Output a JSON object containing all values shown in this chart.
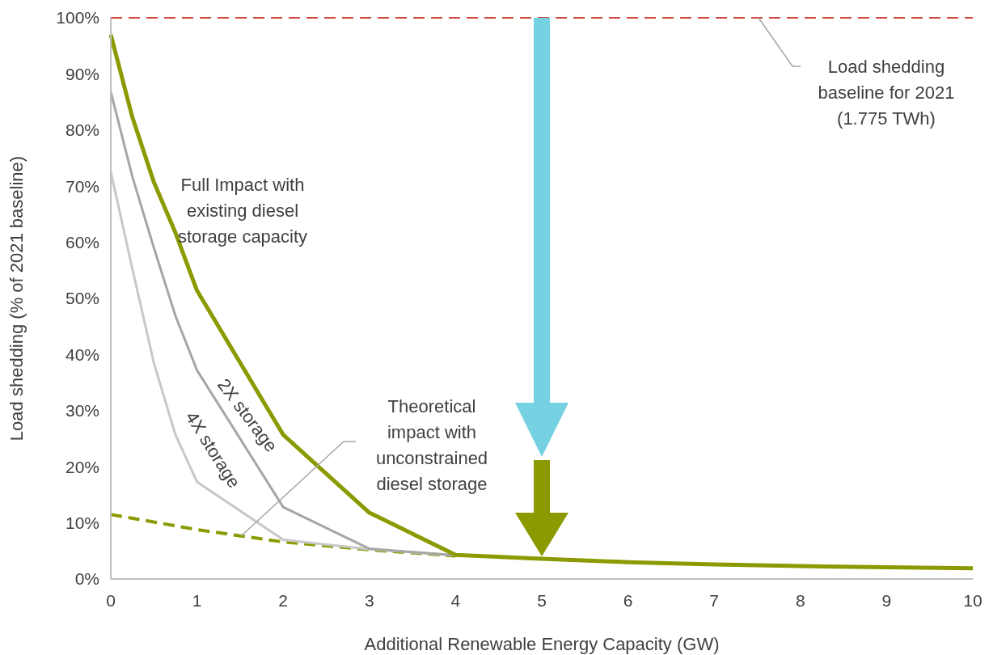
{
  "chart_data": {
    "type": "line",
    "xlabel": "Additional Renewable Energy Capacity (GW)",
    "ylabel": "Load shedding (% of 2021 baseline)",
    "xlim": [
      0,
      10
    ],
    "xticks": [
      0,
      1,
      2,
      3,
      4,
      5,
      6,
      7,
      8,
      9,
      10
    ],
    "ylim": [
      0,
      100
    ],
    "yticks": [
      {
        "value": 0,
        "label": "0%"
      },
      {
        "value": 10,
        "label": "10%"
      },
      {
        "value": 20,
        "label": "20%"
      },
      {
        "value": 30,
        "label": "30%"
      },
      {
        "value": 40,
        "label": "40%"
      },
      {
        "value": 50,
        "label": "50%"
      },
      {
        "value": 60,
        "label": "60%"
      },
      {
        "value": 70,
        "label": "70%"
      },
      {
        "value": 80,
        "label": "80%"
      },
      {
        "value": 90,
        "label": "90%"
      },
      {
        "value": 100,
        "label": "100%"
      }
    ],
    "grid": false,
    "legend": false,
    "marker": "none",
    "series": [
      {
        "name": "Full Impact with existing diesel storage capacity",
        "color": "#8a9a00",
        "x": [
          0,
          0.25,
          0.5,
          0.75,
          1,
          2,
          3,
          4,
          5,
          6,
          7,
          8,
          9,
          10
        ],
        "values": [
          97,
          82.3,
          70.7,
          61.7,
          51.4,
          25.7,
          11.8,
          4.3,
          3.6,
          3,
          2.6,
          2.3,
          2.1,
          1.9
        ]
      },
      {
        "name": "2X storage",
        "color": "#a6a6a6",
        "x": [
          0,
          0.25,
          0.5,
          0.75,
          1,
          2,
          3,
          4
        ],
        "values": [
          86.8,
          71.7,
          59,
          46.9,
          37.2,
          12.8,
          5.4,
          4.2
        ]
      },
      {
        "name": "4X storage",
        "color": "#c8c8c8",
        "x": [
          0,
          0.25,
          0.5,
          0.75,
          1,
          2,
          3,
          4
        ],
        "values": [
          72.6,
          55.3,
          38.5,
          25.7,
          17.3,
          7,
          5.3,
          4.2
        ]
      },
      {
        "name": "Theoretical impact with unconstrained diesel storage",
        "color": "#8a9a00",
        "line_style": "dashed",
        "x": [
          0,
          1,
          2,
          3,
          4
        ],
        "values": [
          11.5,
          8.8,
          6.6,
          5.2,
          4.1
        ]
      }
    ],
    "ref_lines": [
      {
        "axis": "y",
        "value": 100,
        "label": "Load shedding baseline for 2021 (1.775 TWh)",
        "color": "#d0473a",
        "line_style": "dashed"
      }
    ]
  }
}
